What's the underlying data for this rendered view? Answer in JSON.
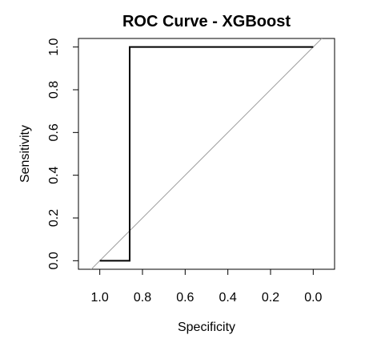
{
  "chart_data": {
    "type": "line",
    "title": "ROC Curve - XGBoost",
    "xlabel": "Specificity",
    "ylabel": "Sensitivity",
    "x_reversed": true,
    "xlim": [
      1.1,
      -0.1
    ],
    "ylim": [
      -0.04,
      1.04
    ],
    "x_ticks": [
      1.0,
      0.8,
      0.6,
      0.4,
      0.2,
      0.0
    ],
    "x_tick_labels": [
      "1.0",
      "0.8",
      "0.6",
      "0.4",
      "0.2",
      "0.0"
    ],
    "y_ticks": [
      0.0,
      0.2,
      0.4,
      0.6,
      0.8,
      1.0
    ],
    "y_tick_labels": [
      "0.0",
      "0.2",
      "0.4",
      "0.6",
      "0.8",
      "1.0"
    ],
    "grid": false,
    "legend": "none",
    "series": [
      {
        "x": [
          1.0,
          0.86,
          0.86,
          0.0
        ],
        "y": [
          0.0,
          0.0,
          1.0,
          1.0
        ]
      }
    ],
    "reference_line": {
      "x": [
        1.0,
        0.0
      ],
      "y": [
        0.0,
        1.0
      ]
    },
    "colors": {
      "curve": "#000000",
      "reference": "#a0a0a0",
      "axes": "#000000"
    }
  }
}
